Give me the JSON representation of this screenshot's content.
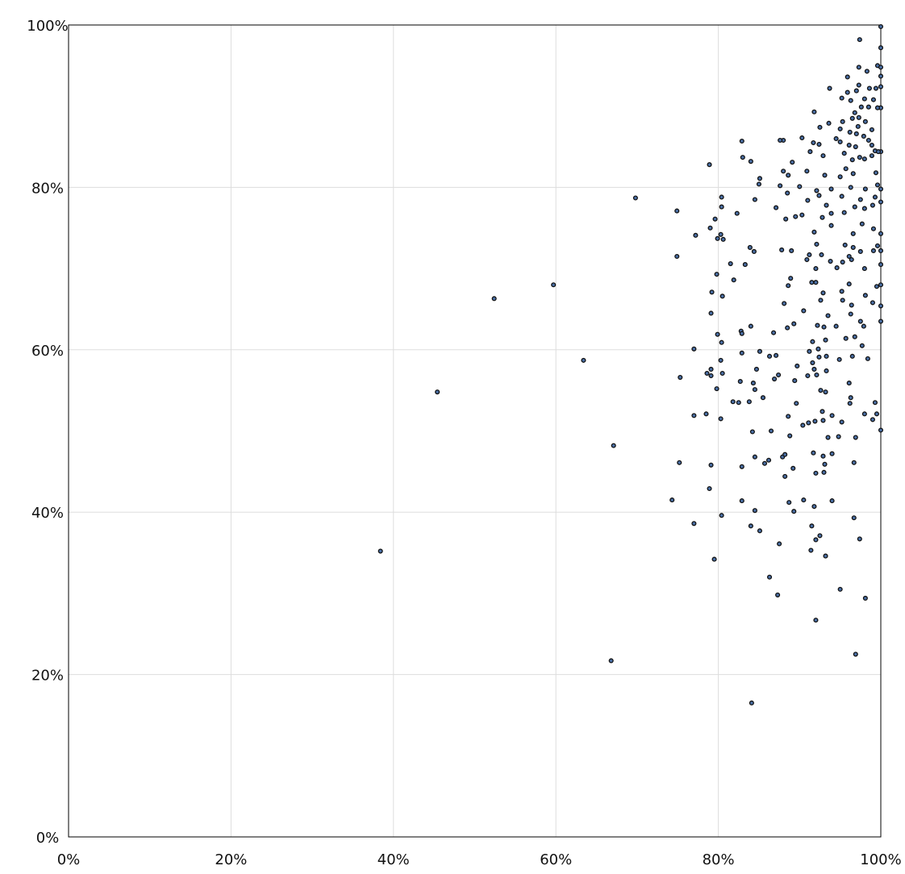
{
  "chart_data": {
    "type": "scatter",
    "title": "",
    "xlabel": "",
    "ylabel": "",
    "xlim": [
      0,
      100
    ],
    "ylim": [
      0,
      100
    ],
    "x_ticks": [
      "0%",
      "20%",
      "40%",
      "60%",
      "80%",
      "100%"
    ],
    "y_ticks": [
      "0%",
      "20%",
      "40%",
      "60%",
      "80%",
      "100%"
    ],
    "tick_values": [
      0,
      20,
      40,
      60,
      80,
      100
    ],
    "grid": true,
    "legend": "none",
    "colors": {
      "marker_fill": "#4a6fa5",
      "marker_edge": "#111111",
      "grid": "#dddddd",
      "axis": "#000000"
    },
    "points": [
      [
        100,
        99.8
      ],
      [
        97.4,
        98.2
      ],
      [
        100,
        97.2
      ],
      [
        99.6,
        95.0
      ],
      [
        97.3,
        94.8
      ],
      [
        100,
        94.8
      ],
      [
        98.3,
        94.3
      ],
      [
        100,
        93.7
      ],
      [
        95.9,
        93.6
      ],
      [
        100,
        92.4
      ],
      [
        93.7,
        92.2
      ],
      [
        97.3,
        92.6
      ],
      [
        98.6,
        92.2
      ],
      [
        99.4,
        92.2
      ],
      [
        95.9,
        91.7
      ],
      [
        97.0,
        91.9
      ],
      [
        95.2,
        91.0
      ],
      [
        96.3,
        90.7
      ],
      [
        98.0,
        90.9
      ],
      [
        99.1,
        90.8
      ],
      [
        100,
        89.8
      ],
      [
        99.6,
        89.8
      ],
      [
        97.6,
        89.9
      ],
      [
        98.5,
        89.9
      ],
      [
        91.8,
        89.3
      ],
      [
        96.8,
        89.2
      ],
      [
        97.3,
        88.6
      ],
      [
        95.3,
        88.1
      ],
      [
        93.6,
        87.9
      ],
      [
        96.5,
        88.5
      ],
      [
        98.1,
        88.1
      ],
      [
        92.5,
        87.4
      ],
      [
        97.2,
        87.5
      ],
      [
        95.0,
        87.2
      ],
      [
        96.2,
        86.8
      ],
      [
        98.9,
        87.1
      ],
      [
        97.0,
        86.6
      ],
      [
        90.3,
        86.1
      ],
      [
        97.9,
        86.3
      ],
      [
        94.5,
        86.0
      ],
      [
        98.5,
        85.8
      ],
      [
        88.0,
        85.8
      ],
      [
        87.6,
        85.8
      ],
      [
        82.9,
        85.7
      ],
      [
        91.7,
        85.5
      ],
      [
        92.4,
        85.3
      ],
      [
        95.0,
        85.6
      ],
      [
        96.1,
        85.2
      ],
      [
        96.9,
        85.0
      ],
      [
        98.9,
        85.2
      ],
      [
        99.3,
        84.5
      ],
      [
        100,
        84.4
      ],
      [
        99.7,
        84.4
      ],
      [
        97.4,
        83.7
      ],
      [
        95.5,
        84.2
      ],
      [
        91.3,
        84.4
      ],
      [
        92.9,
        83.9
      ],
      [
        83.0,
        83.7
      ],
      [
        84.0,
        83.2
      ],
      [
        96.5,
        83.4
      ],
      [
        98.0,
        83.5
      ],
      [
        98.9,
        83.9
      ],
      [
        89.1,
        83.1
      ],
      [
        95.7,
        82.3
      ],
      [
        78.9,
        82.8
      ],
      [
        88.0,
        82.0
      ],
      [
        90.9,
        82.0
      ],
      [
        95.0,
        81.3
      ],
      [
        88.6,
        81.5
      ],
      [
        85.1,
        81.1
      ],
      [
        93.1,
        81.5
      ],
      [
        96.6,
        81.7
      ],
      [
        99.4,
        81.8
      ],
      [
        85.0,
        80.4
      ],
      [
        87.6,
        80.2
      ],
      [
        90.0,
        80.1
      ],
      [
        92.1,
        79.6
      ],
      [
        93.9,
        79.8
      ],
      [
        96.3,
        80.0
      ],
      [
        98.1,
        79.8
      ],
      [
        100,
        79.8
      ],
      [
        99.6,
        80.3
      ],
      [
        88.5,
        79.3
      ],
      [
        92.4,
        79.0
      ],
      [
        95.2,
        78.9
      ],
      [
        97.5,
        78.5
      ],
      [
        100,
        78.2
      ],
      [
        99.3,
        78.8
      ],
      [
        80.4,
        78.8
      ],
      [
        69.8,
        78.7
      ],
      [
        84.5,
        78.5
      ],
      [
        91.0,
        78.4
      ],
      [
        93.3,
        77.8
      ],
      [
        96.8,
        77.6
      ],
      [
        98.0,
        77.4
      ],
      [
        99.0,
        77.8
      ],
      [
        80.4,
        77.6
      ],
      [
        87.1,
        77.5
      ],
      [
        74.9,
        77.1
      ],
      [
        82.3,
        76.8
      ],
      [
        89.5,
        76.4
      ],
      [
        90.3,
        76.6
      ],
      [
        92.8,
        76.3
      ],
      [
        93.9,
        76.8
      ],
      [
        95.5,
        76.9
      ],
      [
        88.3,
        76.1
      ],
      [
        79.6,
        76.1
      ],
      [
        97.7,
        75.5
      ],
      [
        99.1,
        74.9
      ],
      [
        93.9,
        75.3
      ],
      [
        79.0,
        75.0
      ],
      [
        91.8,
        74.5
      ],
      [
        96.6,
        74.3
      ],
      [
        100,
        74.3
      ],
      [
        77.2,
        74.1
      ],
      [
        80.3,
        74.2
      ],
      [
        80.6,
        73.6
      ],
      [
        79.9,
        73.7
      ],
      [
        92.1,
        73.0
      ],
      [
        95.6,
        72.9
      ],
      [
        96.6,
        72.6
      ],
      [
        99.6,
        72.8
      ],
      [
        83.9,
        72.6
      ],
      [
        84.4,
        72.1
      ],
      [
        87.8,
        72.3
      ],
      [
        89.0,
        72.2
      ],
      [
        91.2,
        71.7
      ],
      [
        92.7,
        71.7
      ],
      [
        96.1,
        71.5
      ],
      [
        97.5,
        72.1
      ],
      [
        99.1,
        72.2
      ],
      [
        100,
        72.2
      ],
      [
        74.9,
        71.5
      ],
      [
        93.8,
        70.9
      ],
      [
        95.3,
        70.8
      ],
      [
        96.4,
        71.1
      ],
      [
        90.9,
        71.1
      ],
      [
        81.5,
        70.6
      ],
      [
        83.3,
        70.5
      ],
      [
        92.0,
        70.0
      ],
      [
        94.6,
        70.1
      ],
      [
        98.0,
        70.0
      ],
      [
        100,
        70.5
      ],
      [
        79.8,
        69.3
      ],
      [
        81.9,
        68.6
      ],
      [
        88.9,
        68.8
      ],
      [
        91.5,
        68.3
      ],
      [
        92.0,
        68.3
      ],
      [
        96.1,
        68.1
      ],
      [
        99.5,
        67.8
      ],
      [
        100,
        68.0
      ],
      [
        59.7,
        68.0
      ],
      [
        88.6,
        67.9
      ],
      [
        79.2,
        67.1
      ],
      [
        92.9,
        67.0
      ],
      [
        95.2,
        67.2
      ],
      [
        98.1,
        66.7
      ],
      [
        80.5,
        66.6
      ],
      [
        52.4,
        66.3
      ],
      [
        92.6,
        66.1
      ],
      [
        95.3,
        66.1
      ],
      [
        88.1,
        65.7
      ],
      [
        96.4,
        65.5
      ],
      [
        99.0,
        65.8
      ],
      [
        100,
        65.4
      ],
      [
        79.1,
        64.5
      ],
      [
        93.5,
        64.2
      ],
      [
        96.3,
        64.4
      ],
      [
        90.5,
        64.8
      ],
      [
        97.5,
        63.5
      ],
      [
        100,
        63.5
      ],
      [
        84.0,
        62.9
      ],
      [
        88.5,
        62.7
      ],
      [
        89.3,
        63.2
      ],
      [
        92.2,
        63.0
      ],
      [
        93.0,
        62.8
      ],
      [
        94.5,
        62.9
      ],
      [
        97.9,
        62.9
      ],
      [
        82.8,
        62.3
      ],
      [
        82.9,
        62.0
      ],
      [
        79.9,
        61.9
      ],
      [
        86.8,
        62.1
      ],
      [
        91.6,
        61.0
      ],
      [
        93.2,
        61.2
      ],
      [
        95.7,
        61.4
      ],
      [
        96.8,
        61.6
      ],
      [
        80.4,
        60.9
      ],
      [
        92.3,
        60.1
      ],
      [
        97.7,
        60.5
      ],
      [
        77.0,
        60.1
      ],
      [
        85.1,
        59.8
      ],
      [
        91.2,
        59.8
      ],
      [
        93.3,
        59.2
      ],
      [
        94.9,
        58.8
      ],
      [
        82.9,
        59.6
      ],
      [
        86.3,
        59.2
      ],
      [
        87.1,
        59.3
      ],
      [
        92.4,
        59.1
      ],
      [
        96.5,
        59.2
      ],
      [
        98.4,
        58.9
      ],
      [
        80.3,
        58.7
      ],
      [
        91.6,
        58.4
      ],
      [
        63.4,
        58.7
      ],
      [
        84.7,
        57.6
      ],
      [
        89.7,
        58.0
      ],
      [
        91.8,
        57.6
      ],
      [
        79.1,
        57.6
      ],
      [
        93.3,
        57.4
      ],
      [
        78.6,
        57.1
      ],
      [
        79.1,
        56.8
      ],
      [
        80.5,
        57.1
      ],
      [
        87.4,
        56.9
      ],
      [
        86.9,
        56.4
      ],
      [
        91.0,
        56.8
      ],
      [
        92.1,
        56.9
      ],
      [
        82.7,
        56.1
      ],
      [
        84.3,
        55.9
      ],
      [
        89.4,
        56.2
      ],
      [
        96.1,
        55.9
      ],
      [
        75.3,
        56.6
      ],
      [
        79.8,
        55.2
      ],
      [
        84.5,
        55.1
      ],
      [
        92.6,
        55.0
      ],
      [
        93.2,
        54.8
      ],
      [
        45.4,
        54.8
      ],
      [
        85.5,
        54.1
      ],
      [
        96.3,
        54.1
      ],
      [
        81.8,
        53.6
      ],
      [
        82.5,
        53.5
      ],
      [
        83.8,
        53.6
      ],
      [
        89.6,
        53.4
      ],
      [
        96.2,
        53.4
      ],
      [
        99.3,
        53.5
      ],
      [
        92.8,
        52.4
      ],
      [
        94.0,
        51.9
      ],
      [
        98.0,
        52.1
      ],
      [
        99.5,
        52.1
      ],
      [
        77.0,
        51.9
      ],
      [
        78.5,
        52.1
      ],
      [
        80.3,
        51.5
      ],
      [
        88.6,
        51.8
      ],
      [
        91.9,
        51.2
      ],
      [
        95.2,
        51.1
      ],
      [
        99.0,
        51.4
      ],
      [
        90.4,
        50.7
      ],
      [
        91.1,
        51.0
      ],
      [
        92.9,
        51.3
      ],
      [
        100,
        50.1
      ],
      [
        84.2,
        49.9
      ],
      [
        86.5,
        50.0
      ],
      [
        88.8,
        49.4
      ],
      [
        93.5,
        49.2
      ],
      [
        94.8,
        49.3
      ],
      [
        96.9,
        49.2
      ],
      [
        67.1,
        48.2
      ],
      [
        87.9,
        46.8
      ],
      [
        88.2,
        47.1
      ],
      [
        91.7,
        47.3
      ],
      [
        94.0,
        47.2
      ],
      [
        92.9,
        46.9
      ],
      [
        84.5,
        46.8
      ],
      [
        86.2,
        46.4
      ],
      [
        75.2,
        46.1
      ],
      [
        85.7,
        46.0
      ],
      [
        89.2,
        45.4
      ],
      [
        93.1,
        45.9
      ],
      [
        96.7,
        46.1
      ],
      [
        79.1,
        45.8
      ],
      [
        82.9,
        45.6
      ],
      [
        92.0,
        44.8
      ],
      [
        93.0,
        44.9
      ],
      [
        88.2,
        44.4
      ],
      [
        78.9,
        42.9
      ],
      [
        74.3,
        41.5
      ],
      [
        82.9,
        41.4
      ],
      [
        88.7,
        41.2
      ],
      [
        90.5,
        41.5
      ],
      [
        94.0,
        41.4
      ],
      [
        84.5,
        40.2
      ],
      [
        80.4,
        39.6
      ],
      [
        89.3,
        40.1
      ],
      [
        91.8,
        40.7
      ],
      [
        96.7,
        39.3
      ],
      [
        77.0,
        38.6
      ],
      [
        84.0,
        38.3
      ],
      [
        91.5,
        38.3
      ],
      [
        85.1,
        37.7
      ],
      [
        92.5,
        37.1
      ],
      [
        97.4,
        36.7
      ],
      [
        92.0,
        36.6
      ],
      [
        87.5,
        36.1
      ],
      [
        38.4,
        35.2
      ],
      [
        91.4,
        35.3
      ],
      [
        93.2,
        34.6
      ],
      [
        79.5,
        34.2
      ],
      [
        86.3,
        32.0
      ],
      [
        95.0,
        30.5
      ],
      [
        87.3,
        29.8
      ],
      [
        98.1,
        29.4
      ],
      [
        92.0,
        26.7
      ],
      [
        96.9,
        22.5
      ],
      [
        66.8,
        21.7
      ],
      [
        84.1,
        16.5
      ]
    ]
  }
}
